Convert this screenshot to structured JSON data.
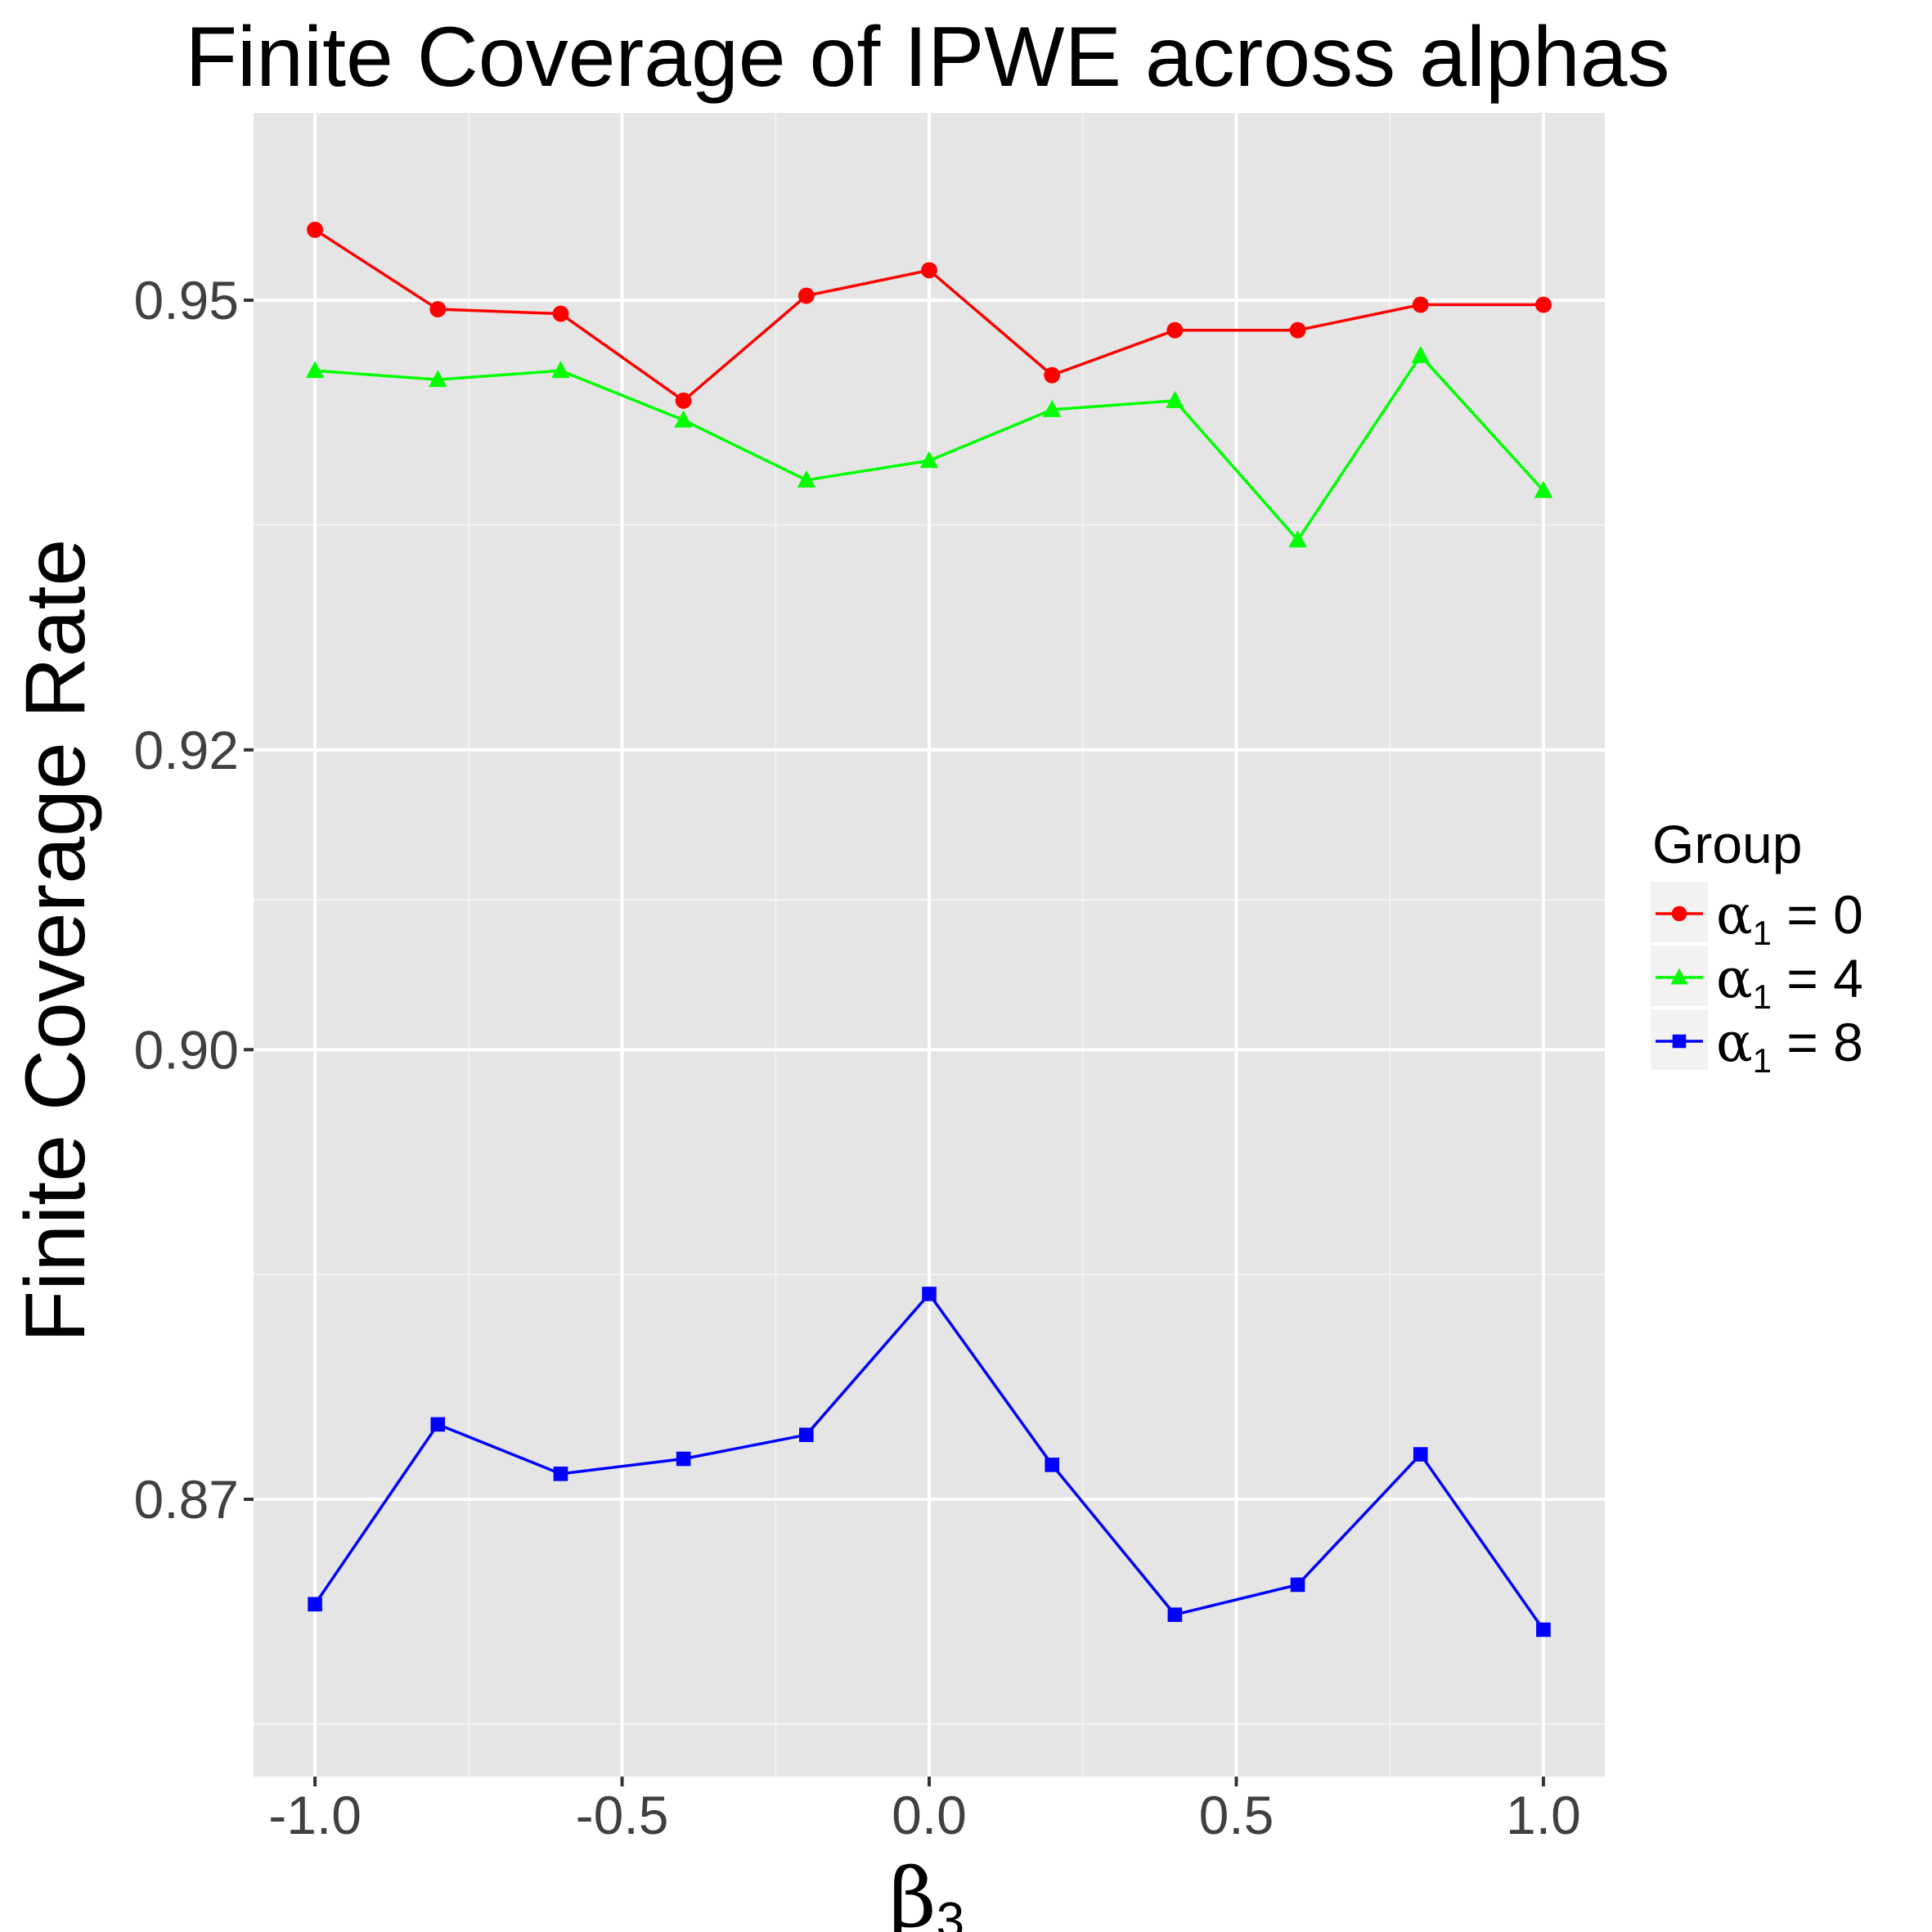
{
  "chart_data": {
    "type": "line",
    "title": "Finite Coverage of IPWE across alphas",
    "xlabel": {
      "symbol": "β",
      "subscript": "3"
    },
    "ylabel": "Finite Coverage Rate",
    "xlim": [
      -1.1,
      1.1
    ],
    "ylim": [
      0.8515,
      0.9625
    ],
    "x_ticks": [
      -1.0,
      -0.5,
      0.0,
      0.5,
      1.0
    ],
    "x_tick_labels": [
      "-1.0",
      "-0.5",
      "0.0",
      "0.5",
      "1.0"
    ],
    "y_ticks": [
      0.87,
      0.9,
      0.92,
      0.95
    ],
    "y_tick_labels": [
      "0.87",
      "0.90",
      "0.92",
      "0.95"
    ],
    "y_minor_ticks": [
      0.855,
      0.885,
      0.91,
      0.935
    ],
    "grid": true,
    "legend": {
      "title": "Group",
      "position": "right"
    },
    "x": [
      -1.0,
      -0.8,
      -0.6,
      -0.4,
      -0.2,
      0.0,
      0.2,
      0.4,
      0.6,
      0.8,
      1.0
    ],
    "series": [
      {
        "name": "α₁ = 0",
        "name_symbol": "α",
        "name_sub": "1",
        "name_rest": " = 0",
        "color": "#FF0000",
        "marker": "circle",
        "values": [
          0.9547,
          0.9494,
          0.9491,
          0.9433,
          0.9503,
          0.952,
          0.945,
          0.948,
          0.948,
          0.9497,
          0.9497
        ]
      },
      {
        "name": "α₁ = 4",
        "name_symbol": "α",
        "name_sub": "1",
        "name_rest": " = 4",
        "color": "#00FF00",
        "marker": "triangle",
        "values": [
          0.9453,
          0.9447,
          0.9453,
          0.942,
          0.938,
          0.9393,
          0.9427,
          0.9433,
          0.934,
          0.9463,
          0.9373
        ]
      },
      {
        "name": "α₁ = 8",
        "name_symbol": "α",
        "name_sub": "1",
        "name_rest": " = 8",
        "color": "#0000FF",
        "marker": "square",
        "values": [
          0.863,
          0.875,
          0.8717,
          0.8727,
          0.8743,
          0.8837,
          0.8723,
          0.8623,
          0.8643,
          0.873,
          0.8613
        ]
      }
    ]
  }
}
